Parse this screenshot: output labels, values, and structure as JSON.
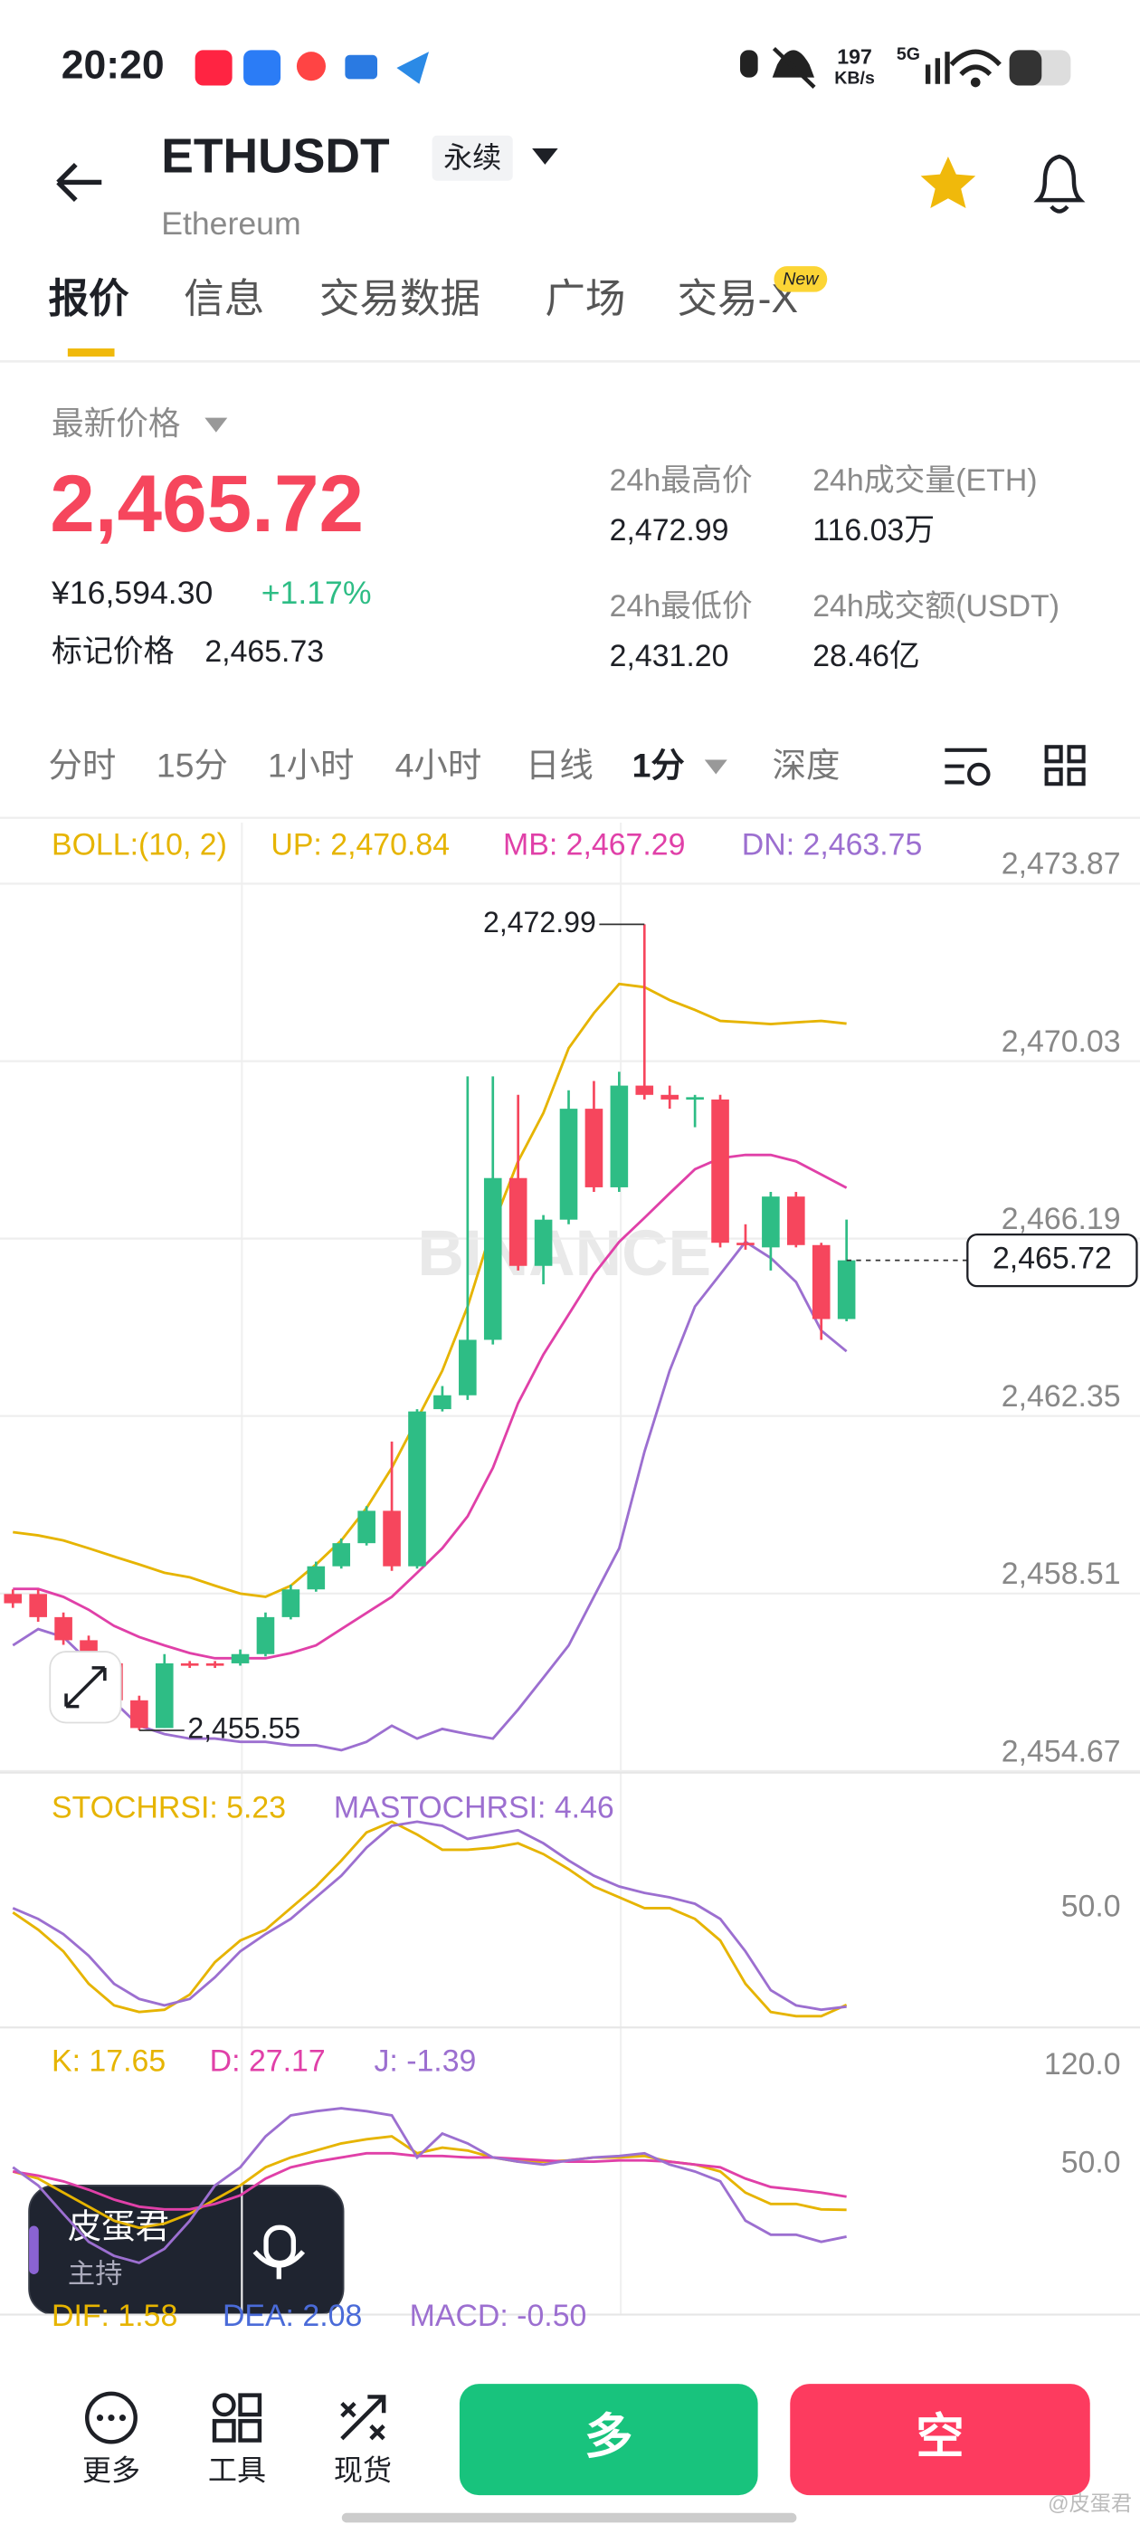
{
  "status_bar": {
    "time": "20:20",
    "speed": "197",
    "speed_unit": "KB/s",
    "network": "5G"
  },
  "header": {
    "symbol": "ETHUSDT",
    "contract": "永续",
    "name": "Ethereum"
  },
  "tabs": [
    "报价",
    "信息",
    "交易数据",
    "广场",
    "交易-X"
  ],
  "tab_badge": "New",
  "price": {
    "label": "最新价格",
    "last": "2,465.72",
    "cny": "¥16,594.30",
    "change": "+1.17%",
    "mark_label": "标记价格",
    "mark": "2,465.73"
  },
  "stats": [
    {
      "label": "24h最高价",
      "value": "2,472.99"
    },
    {
      "label": "24h成交量(ETH)",
      "value": "116.03万"
    },
    {
      "label": "24h最低价",
      "value": "2,431.20"
    },
    {
      "label": "24h成交额(USDT)",
      "value": "28.46亿"
    }
  ],
  "intervals": [
    "分时",
    "15分",
    "1小时",
    "4小时",
    "日线",
    "1分",
    "深度"
  ],
  "chart_data": [
    {
      "type": "candlestick",
      "indicator": "BOLL:(10, 2)",
      "watermark": "BINANCE",
      "up_color": "#2ebd85",
      "down_color": "#f6465d",
      "grid": true,
      "ylim": [
        2454.67,
        2475.19
      ],
      "yticks": [
        {
          "value": 2473.87,
          "label": "2,473.87"
        },
        {
          "value": 2470.03,
          "label": "2,470.03"
        },
        {
          "value": 2466.19,
          "label": "2,466.19"
        },
        {
          "value": 2462.35,
          "label": "2,462.35"
        },
        {
          "value": 2458.51,
          "label": "2,458.51"
        },
        {
          "value": 2454.67,
          "label": "2,454.67"
        }
      ],
      "open": [
        2458.5,
        2458.5,
        2458.0,
        2457.5,
        2457.0,
        2456.2,
        2455.6,
        2457.0,
        2457.0,
        2457.0,
        2457.2,
        2458.0,
        2458.6,
        2459.1,
        2459.6,
        2460.3,
        2459.1,
        2462.5,
        2462.8,
        2464.0,
        2467.5,
        2465.6,
        2466.6,
        2469.0,
        2467.3,
        2469.5,
        2469.3,
        2469.2,
        2469.2,
        2466.1,
        2466.0,
        2467.1,
        2466.05,
        2464.45
      ],
      "high": [
        2458.6,
        2458.6,
        2458.1,
        2457.6,
        2457.1,
        2456.3,
        2457.2,
        2457.05,
        2457.05,
        2457.3,
        2458.1,
        2458.7,
        2459.2,
        2459.7,
        2460.4,
        2461.8,
        2462.5,
        2463.0,
        2469.7,
        2469.7,
        2469.3,
        2466.7,
        2469.4,
        2469.6,
        2469.8,
        2472.99,
        2469.5,
        2469.3,
        2469.3,
        2466.5,
        2467.2,
        2467.2,
        2466.1,
        2466.6
      ],
      "low": [
        2458.2,
        2457.9,
        2457.4,
        2456.9,
        2456.1,
        2455.55,
        2455.6,
        2456.9,
        2456.9,
        2456.95,
        2457.15,
        2457.95,
        2458.55,
        2459.05,
        2459.55,
        2459.0,
        2459.05,
        2462.45,
        2462.7,
        2463.9,
        2465.5,
        2465.2,
        2466.5,
        2467.2,
        2467.2,
        2469.2,
        2469.0,
        2468.6,
        2466.0,
        2465.95,
        2465.5,
        2466.0,
        2464.0,
        2464.4
      ],
      "close": [
        2458.3,
        2458.0,
        2457.5,
        2457.0,
        2456.2,
        2455.6,
        2457.0,
        2456.95,
        2456.95,
        2457.2,
        2458.0,
        2458.6,
        2459.1,
        2459.6,
        2460.3,
        2459.1,
        2462.45,
        2462.8,
        2464.0,
        2467.5,
        2465.6,
        2466.6,
        2469.0,
        2467.3,
        2469.5,
        2469.3,
        2469.2,
        2469.25,
        2466.1,
        2466.05,
        2467.1,
        2466.05,
        2464.45,
        2465.72
      ],
      "series": [
        {
          "name": "UP: 2,470.84",
          "color": "#e6b400",
          "values": [
            2459.84,
            2459.77,
            2459.66,
            2459.49,
            2459.31,
            2459.14,
            2458.96,
            2458.86,
            2458.68,
            2458.51,
            2458.44,
            2458.68,
            2459.14,
            2459.66,
            2460.36,
            2461.23,
            2462.28,
            2463.33,
            2464.72,
            2466.47,
            2467.86,
            2468.91,
            2470.31,
            2471.07,
            2471.7,
            2471.63,
            2471.35,
            2471.14,
            2470.9,
            2470.87,
            2470.83,
            2470.87,
            2470.9,
            2470.84
          ]
        },
        {
          "name": "MB: 2,467.29",
          "color": "#e040a8",
          "values": [
            2458.61,
            2458.61,
            2458.44,
            2458.16,
            2457.81,
            2457.57,
            2457.39,
            2457.22,
            2457.11,
            2457.11,
            2457.11,
            2457.22,
            2457.39,
            2457.74,
            2458.09,
            2458.44,
            2458.96,
            2459.49,
            2460.18,
            2461.23,
            2462.63,
            2463.68,
            2464.55,
            2465.42,
            2466.12,
            2466.64,
            2467.17,
            2467.69,
            2467.93,
            2468.0,
            2468.0,
            2467.86,
            2467.58,
            2467.29
          ]
        },
        {
          "name": "DN: 2,463.75",
          "color": "#9c6fd0",
          "values": [
            2457.39,
            2457.74,
            2457.57,
            2457.04,
            2456.17,
            2455.65,
            2455.47,
            2455.37,
            2455.37,
            2455.3,
            2455.3,
            2455.23,
            2455.23,
            2455.12,
            2455.3,
            2455.65,
            2455.37,
            2455.58,
            2455.47,
            2455.37,
            2456.0,
            2456.69,
            2457.39,
            2458.44,
            2459.49,
            2461.58,
            2463.33,
            2464.72,
            2465.42,
            2466.12,
            2465.77,
            2465.25,
            2464.2,
            2463.75
          ]
        }
      ],
      "last_price": {
        "value": 2465.72,
        "label": "2,465.72"
      },
      "high_label": {
        "value": 2472.99,
        "label": "2,472.99"
      },
      "low_label": {
        "value": 2455.55,
        "label": "2,455.55"
      }
    },
    {
      "type": "line",
      "grid": false,
      "ylim": [
        -3.7,
        111.9
      ],
      "yticks": [
        {
          "value": 50,
          "label": "50.0"
        }
      ],
      "series": [
        {
          "name": "STOCHRSI: 5.23",
          "color": "#e6b400",
          "values": [
            48,
            40,
            30,
            15,
            5,
            2,
            3,
            10,
            25,
            35,
            40,
            50,
            60,
            72,
            85,
            90,
            84,
            77,
            77,
            78,
            80,
            75,
            68,
            60,
            55,
            50,
            50,
            45,
            35,
            15,
            2,
            0,
            0,
            5.23
          ]
        },
        {
          "name": "MASTOCHRSI: 4.46",
          "color": "#9c6fd0",
          "values": [
            50,
            45,
            38,
            28,
            15,
            8,
            5,
            8,
            18,
            30,
            38,
            45,
            55,
            65,
            78,
            88,
            90,
            88,
            82,
            84,
            86,
            80,
            72,
            65,
            60,
            57,
            55,
            52,
            45,
            30,
            12,
            5,
            3,
            4.46
          ]
        }
      ]
    },
    {
      "type": "line",
      "grid": false,
      "ylim": [
        -56.8,
        146.4
      ],
      "yticks": [
        {
          "value": 120,
          "label": "120.0"
        },
        {
          "value": 50,
          "label": "50.0"
        }
      ],
      "series": [
        {
          "name": "K: 17.65",
          "color": "#e6b400",
          "values": [
            45,
            40,
            30,
            20,
            10,
            5,
            8,
            15,
            25,
            35,
            48,
            55,
            60,
            65,
            68,
            70,
            58,
            62,
            60,
            55,
            52,
            52,
            53,
            55,
            55,
            56,
            52,
            50,
            45,
            30,
            22,
            22,
            18,
            17.65
          ]
        },
        {
          "name": "D: 27.17",
          "color": "#e040a8",
          "values": [
            45,
            42,
            38,
            32,
            25,
            20,
            18,
            18,
            22,
            28,
            40,
            48,
            52,
            55,
            58,
            58,
            56,
            56,
            55,
            55,
            54,
            53,
            52,
            52,
            53,
            53,
            52,
            50,
            48,
            40,
            34,
            32,
            30,
            27.17
          ]
        },
        {
          "name": "J: -1.39",
          "color": "#9c6fd0",
          "values": [
            48,
            35,
            15,
            -5,
            -15,
            -20,
            -10,
            10,
            35,
            48,
            70,
            85,
            88,
            90,
            88,
            85,
            55,
            72,
            65,
            55,
            52,
            50,
            53,
            55,
            56,
            58,
            50,
            45,
            38,
            10,
            0,
            0,
            -5,
            -1.39
          ]
        }
      ]
    }
  ],
  "macd_legend": [
    "DIF: 1.58",
    "DEA: 2.08",
    "MACD: -0.50"
  ],
  "host": {
    "name": "皮蛋君",
    "role": "主持"
  },
  "actions": [
    "更多",
    "工具",
    "现货"
  ],
  "buttons": [
    "多",
    "空"
  ],
  "footer_watermark": "@皮蛋君"
}
